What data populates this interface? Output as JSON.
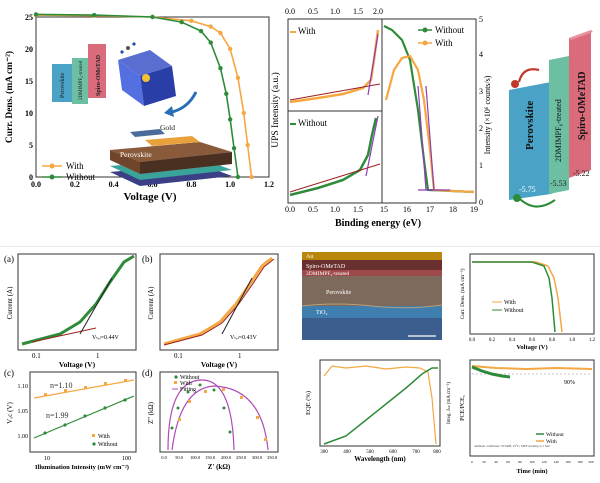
{
  "colors": {
    "with": "#f5a742",
    "without": "#2e8b3a",
    "purple": "#8e3db3",
    "darkred": "#9c1f1f",
    "perovskite_block": "#4aa3c7",
    "dmimpf_block": "#6cbfa0",
    "spiro_block": "#d96b7a",
    "fit": "#b04ab8"
  },
  "panel_jv_main": {
    "ylabel": "Curr. Dens. (mA cm⁻²)",
    "xlabel": "Voltage (V)",
    "legend": [
      "With",
      "Without"
    ],
    "stack_labels": [
      "Gold",
      "Perovskite"
    ],
    "mini_labels": [
      "Perovskite",
      "2DMIMPF₆-treated",
      "Spiro-OMeTAD"
    ],
    "chart_data": {
      "type": "line",
      "xlabel": "Voltage (V)",
      "ylabel": "Curr. Dens. (mA cm⁻²)",
      "xlim": [
        0.0,
        1.2
      ],
      "ylim": [
        0,
        25
      ],
      "xticks": [
        "0.0",
        "0.2",
        "0.4",
        "0.6",
        "0.8",
        "1.0",
        "1.2"
      ],
      "yticks": [
        "0",
        "5",
        "10",
        "15",
        "20",
        "25"
      ],
      "series": [
        {
          "name": "With",
          "x": [
            0,
            0.3,
            0.6,
            0.8,
            0.9,
            0.95,
            1.0,
            1.04,
            1.07,
            1.09,
            1.11
          ],
          "y": [
            25.3,
            25.2,
            25.0,
            24.4,
            23.5,
            22.5,
            20.0,
            15.5,
            10.0,
            5.0,
            0
          ]
        },
        {
          "name": "Without",
          "x": [
            0,
            0.3,
            0.6,
            0.75,
            0.85,
            0.9,
            0.95,
            0.98,
            1.0,
            1.02,
            1.04
          ],
          "y": [
            25.4,
            25.3,
            25.0,
            24.2,
            22.8,
            21.0,
            17.0,
            13.0,
            9.0,
            4.5,
            0
          ]
        }
      ]
    }
  },
  "panel_ups": {
    "ylabel": "UPS Intensity (a.u.)",
    "xlabel": "Binding energy (eV)",
    "ylabel_right": "Intensity (×10⁶ counts/s)",
    "label_with": "With",
    "label_without": "Without",
    "legend": [
      "Without",
      "With"
    ],
    "left_xticks": [
      "0.0",
      "0.5",
      "1.0",
      "1.5",
      "2.0"
    ],
    "right_xticks": [
      "15",
      "16",
      "17",
      "18",
      "19"
    ],
    "right_yticks": [
      "0",
      "1",
      "2",
      "3",
      "4",
      "5"
    ]
  },
  "panel_energy": {
    "blocks": [
      "Perovskite",
      "2DMIMPF₆-treated",
      "Spiro-OMeTAD"
    ],
    "values": [
      "-5.75",
      "-5.53",
      "-5.22"
    ]
  },
  "panel_a": {
    "tag": "(a)",
    "ylabel": "Current (A)",
    "xlabel": "Voltage (V)",
    "xticks": [
      "0.1",
      "1"
    ],
    "annotation": "Vₜₑₗ=0.44V"
  },
  "panel_b": {
    "tag": "(b)",
    "ylabel": "Current (A)",
    "xlabel": "Voltage (V)",
    "xticks": [
      "0.1",
      "1"
    ],
    "annotation": "Vₜₑₗ=0.43V"
  },
  "panel_c": {
    "tag": "(c)",
    "ylabel": "Vₒc (V)",
    "xlabel": "Illumination Intensity (mW cm⁻²)",
    "yticks": [
      "1.10",
      "1.05",
      "1.00"
    ],
    "xticks": [
      "10",
      "100"
    ],
    "n_with": "n=1.10",
    "n_without": "n=1.99",
    "legend": [
      "With",
      "Without"
    ]
  },
  "panel_d": {
    "tag": "(d)",
    "ylabel": "Z'' (kΩ)",
    "xlabel": "Z' (kΩ)",
    "legend": [
      "Without",
      "With",
      "Fitting"
    ],
    "xticks": [
      "0.0",
      "50.0",
      "100.0",
      "150.0",
      "200.0",
      "250.0",
      "300.0",
      "350.0"
    ]
  },
  "panel_sem": {
    "layers": [
      "Au",
      "Spiro-OMeTAD",
      "2DMIMPF₆-treated",
      "Perovskite",
      "TiO₂"
    ]
  },
  "panel_jv_small": {
    "ylabel": "Curr. Dens. (mA cm⁻²)",
    "xlabel": "Voltage (V)",
    "legend": [
      "With",
      "Without"
    ],
    "xticks": [
      "0.0",
      "0.2",
      "0.4",
      "0.6",
      "0.8",
      "1.0",
      "1.2"
    ]
  },
  "panel_eqe": {
    "ylabel": "EQE (%)",
    "ylabel_right": "Integ. Jₛₙ (mA cm⁻²)",
    "xlabel": "Wavelength (nm)",
    "xticks": [
      "300",
      "400",
      "500",
      "600",
      "700",
      "800"
    ]
  },
  "panel_stab": {
    "ylabel": "PCE/PCE₀",
    "xlabel": "Time (min)",
    "percent": "90%",
    "legend": [
      "Without",
      "With"
    ],
    "note": "Ambient conditions: 35%RH, 25°C; MPP tracking at 1 Sun",
    "xticks": [
      "0",
      "20",
      "40",
      "60",
      "80",
      "100",
      "120",
      "140",
      "160",
      "180",
      "200"
    ]
  }
}
